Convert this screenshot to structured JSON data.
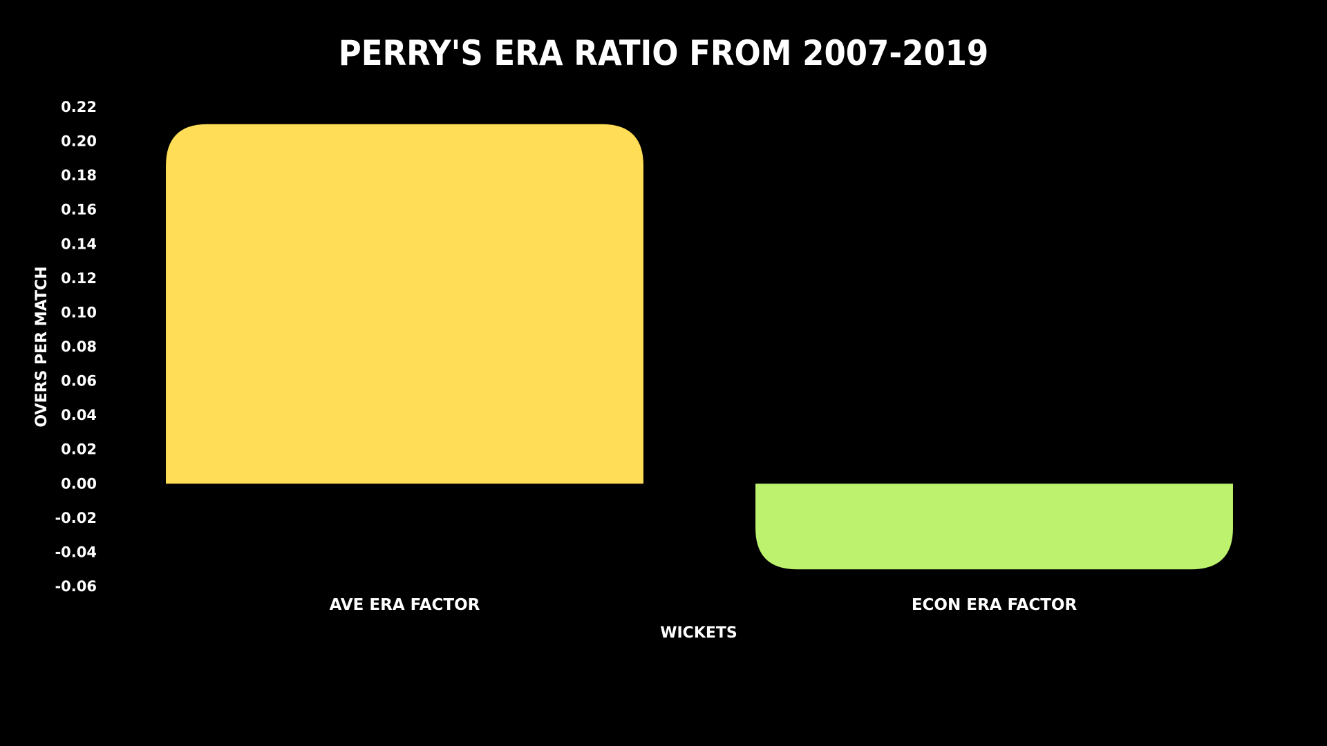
{
  "chart_data": {
    "type": "bar",
    "title": "PERRY'S ERA RATIO FROM 2007-2019",
    "xlabel": "WICKETS",
    "ylabel": "OVERS PER MATCH",
    "categories": [
      "AVE ERA FACTOR",
      "ECON ERA FACTOR"
    ],
    "values": [
      0.21,
      -0.05
    ],
    "colors": [
      "#FFDD57",
      "#BDF26E"
    ],
    "ylim": [
      -0.06,
      0.22
    ],
    "yticks": [
      "0.22",
      "0.20",
      "0.18",
      "0.16",
      "0.14",
      "0.12",
      "0.10",
      "0.08",
      "0.06",
      "0.04",
      "0.02",
      "0.00",
      "-0.02",
      "-0.04",
      "-0.06"
    ],
    "grid": false,
    "legend": "none",
    "background": "#000000"
  }
}
